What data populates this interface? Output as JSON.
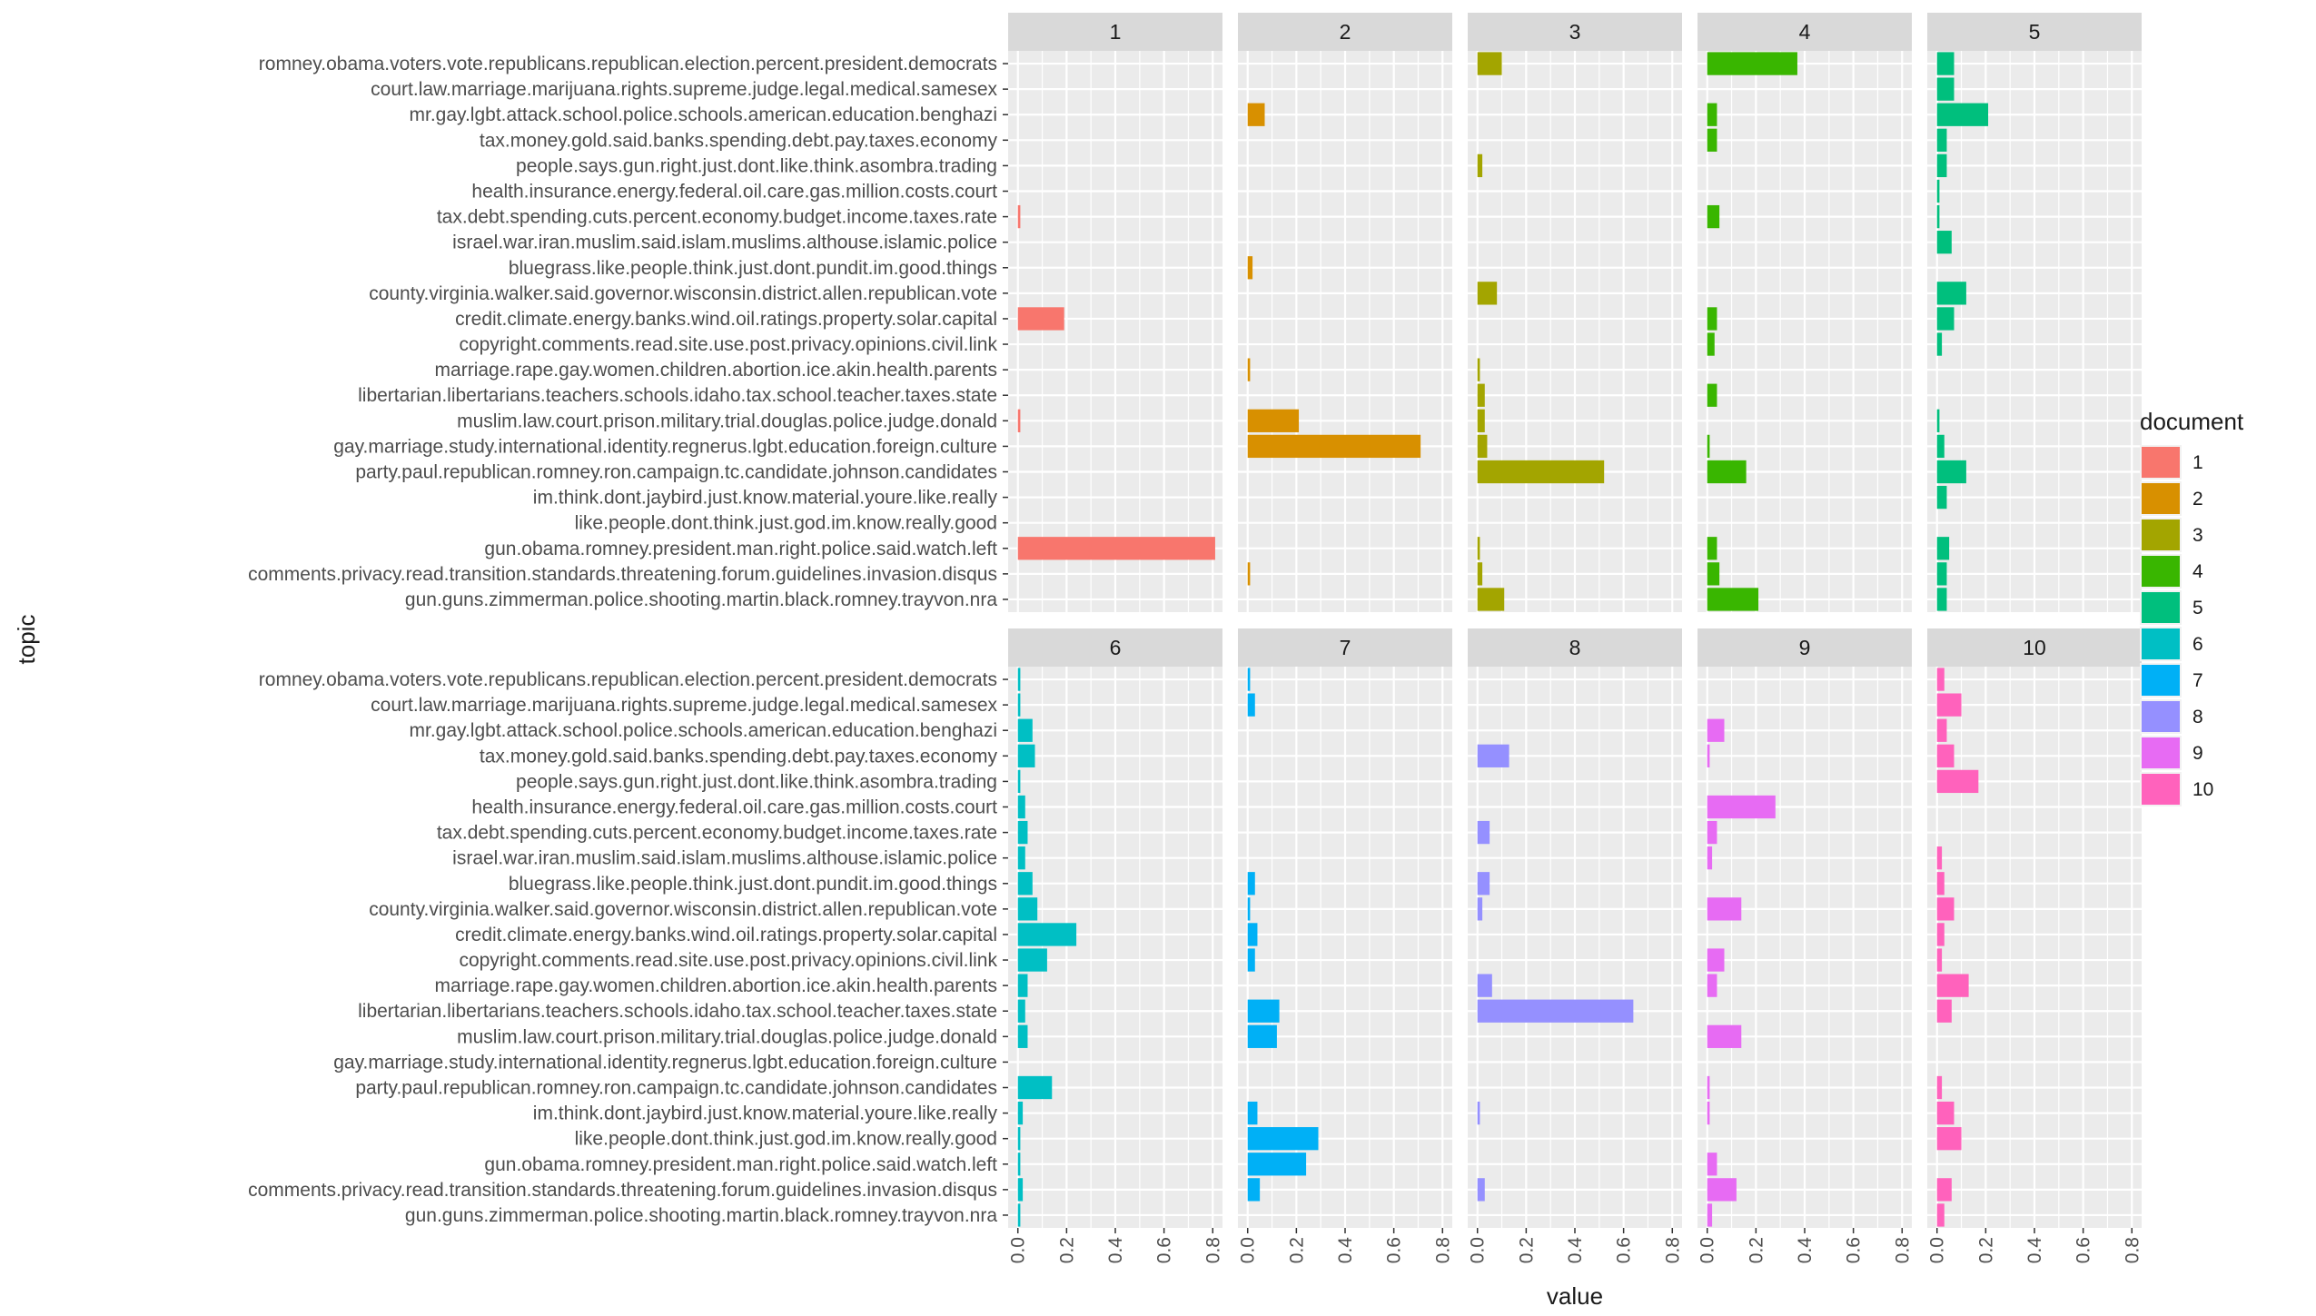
{
  "chart_data": {
    "type": "bar",
    "orientation": "horizontal",
    "facet_by": "document",
    "xlabel": "value",
    "ylabel": "topic",
    "xlim": [
      0,
      0.8
    ],
    "x_ticks": [
      "0.0",
      "0.2",
      "0.4",
      "0.6",
      "0.8"
    ],
    "legend": {
      "title": "document",
      "position": "right"
    },
    "categories": [
      "romney.obama.voters.vote.republicans.republican.election.percent.president.democrats",
      "court.law.marriage.marijuana.rights.supreme.judge.legal.medical.samesex",
      "mr.gay.lgbt.attack.school.police.schools.american.education.benghazi",
      "tax.money.gold.said.banks.spending.debt.pay.taxes.economy",
      "people.says.gun.right.just.dont.like.think.asombra.trading",
      "health.insurance.energy.federal.oil.care.gas.million.costs.court",
      "tax.debt.spending.cuts.percent.economy.budget.income.taxes.rate",
      "israel.war.iran.muslim.said.islam.muslims.althouse.islamic.police",
      "bluegrass.like.people.think.just.dont.pundit.im.good.things",
      "county.virginia.walker.said.governor.wisconsin.district.allen.republican.vote",
      "credit.climate.energy.banks.wind.oil.ratings.property.solar.capital",
      "copyright.comments.read.site.use.post.privacy.opinions.civil.link",
      "marriage.rape.gay.women.children.abortion.ice.akin.health.parents",
      "libertarian.libertarians.teachers.schools.idaho.tax.school.teacher.taxes.state",
      "muslim.law.court.prison.military.trial.douglas.police.judge.donald",
      "gay.marriage.study.international.identity.regnerus.lgbt.education.foreign.culture",
      "party.paul.republican.romney.ron.campaign.tc.candidate.johnson.candidates",
      "im.think.dont.jaybird.just.know.material.youre.like.really",
      "like.people.dont.think.just.god.im.know.really.good",
      "gun.obama.romney.president.man.right.police.said.watch.left",
      "comments.privacy.read.transition.standards.threatening.forum.guidelines.invasion.disqus",
      "gun.guns.zimmerman.police.shooting.martin.black.romney.trayvon.nra"
    ],
    "series": [
      {
        "name": "1",
        "color": "#F8766D",
        "values": [
          0,
          0,
          0,
          0,
          0,
          0,
          0.01,
          0,
          0,
          0,
          0.19,
          0,
          0,
          0,
          0.01,
          0,
          0,
          0,
          0,
          0.81,
          0,
          0
        ]
      },
      {
        "name": "2",
        "color": "#D89000",
        "values": [
          0,
          0,
          0.07,
          0,
          0,
          0,
          0,
          0,
          0.02,
          0,
          0,
          0,
          0.01,
          0,
          0.21,
          0.71,
          0,
          0,
          0,
          0,
          0.01,
          0
        ]
      },
      {
        "name": "3",
        "color": "#A3A500",
        "values": [
          0.1,
          0,
          0,
          0,
          0.02,
          0,
          0,
          0,
          0,
          0.08,
          0,
          0,
          0.01,
          0.03,
          0.03,
          0.04,
          0.52,
          0,
          0,
          0.01,
          0.02,
          0.11
        ]
      },
      {
        "name": "4",
        "color": "#39B600",
        "values": [
          0.37,
          0,
          0.04,
          0.04,
          0,
          0,
          0.05,
          0,
          0,
          0,
          0.04,
          0.03,
          0,
          0.04,
          0,
          0.01,
          0.16,
          0,
          0,
          0.04,
          0.05,
          0.21
        ]
      },
      {
        "name": "5",
        "color": "#00BF7D",
        "values": [
          0.07,
          0.07,
          0.21,
          0.04,
          0.04,
          0.01,
          0.01,
          0.06,
          0,
          0.12,
          0.07,
          0.02,
          0,
          0,
          0.01,
          0.03,
          0.12,
          0.04,
          0,
          0.05,
          0.04,
          0.04
        ]
      },
      {
        "name": "6",
        "color": "#00BFC4",
        "values": [
          0.01,
          0.01,
          0.06,
          0.07,
          0.01,
          0.03,
          0.04,
          0.03,
          0.06,
          0.08,
          0.24,
          0.12,
          0.04,
          0.03,
          0.04,
          0,
          0.14,
          0.02,
          0.01,
          0.01,
          0.02,
          0.01
        ]
      },
      {
        "name": "7",
        "color": "#00B0F6",
        "values": [
          0.01,
          0.03,
          0,
          0,
          0,
          0,
          0,
          0,
          0.03,
          0.01,
          0.04,
          0.03,
          0,
          0.13,
          0.12,
          0,
          0,
          0.04,
          0.29,
          0.24,
          0.05,
          0
        ]
      },
      {
        "name": "8",
        "color": "#9590FF",
        "values": [
          0,
          0,
          0,
          0.13,
          0,
          0,
          0.05,
          0,
          0.05,
          0.02,
          0,
          0,
          0.06,
          0.64,
          0,
          0,
          0,
          0.01,
          0,
          0,
          0.03,
          0
        ]
      },
      {
        "name": "9",
        "color": "#E76BF3",
        "values": [
          0,
          0,
          0.07,
          0.01,
          0,
          0.28,
          0.04,
          0.02,
          0,
          0.14,
          0,
          0.07,
          0.04,
          0,
          0.14,
          0,
          0.01,
          0.01,
          0,
          0.04,
          0.12,
          0.02
        ]
      },
      {
        "name": "10",
        "color": "#FF62BC",
        "values": [
          0.03,
          0.1,
          0.04,
          0.07,
          0.17,
          0,
          0,
          0.02,
          0.03,
          0.07,
          0.03,
          0.02,
          0.13,
          0.06,
          0,
          0,
          0.02,
          0.07,
          0.1,
          0,
          0.06,
          0.03
        ]
      }
    ]
  }
}
